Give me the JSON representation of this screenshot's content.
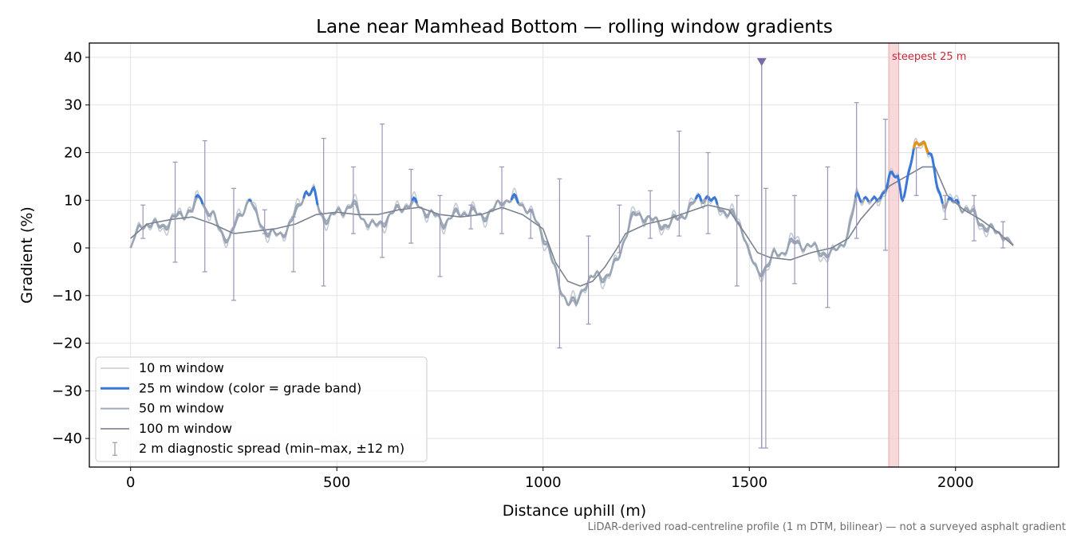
{
  "chart_data": {
    "type": "line",
    "title": "Lane near Mamhead Bottom — rolling window gradients",
    "xlabel": "Distance uphill (m)",
    "ylabel": "Gradient (%)",
    "xlim": [
      -100,
      2250
    ],
    "ylim": [
      -46,
      43
    ],
    "xticks": [
      0,
      500,
      1000,
      1500,
      2000
    ],
    "xtick_labels": [
      "0",
      "500",
      "1000",
      "1500",
      "2000"
    ],
    "yticks": [
      -40,
      -30,
      -20,
      -10,
      0,
      10,
      20,
      30,
      40
    ],
    "ytick_labels": [
      "−40",
      "−30",
      "−20",
      "−10",
      "0",
      "10",
      "20",
      "30",
      "40"
    ],
    "grid": true,
    "legend_position": "lower-left",
    "caption": "LiDAR-derived road-centreline profile (1 m DTM, bilinear) — not a surveyed asphalt gradient",
    "colors": {
      "w10": "#c5ccd6",
      "w25": "#9aa5b4",
      "w50": "#a2aab8",
      "w100": "#7b8291",
      "band_blue": "#3a78d8",
      "band_orange": "#e8920c",
      "band_red": "#d62728",
      "errorbar": "#9a96b8",
      "marker": "#7b6aa8",
      "highlight": "#f4c7cc",
      "highlight_text": "#c8283a"
    },
    "profile_knots": [
      [
        0,
        0
      ],
      [
        20,
        4
      ],
      [
        40,
        5.2
      ],
      [
        70,
        5.5
      ],
      [
        100,
        6
      ],
      [
        130,
        6.5
      ],
      [
        150,
        7
      ],
      [
        170,
        11
      ],
      [
        180,
        9
      ],
      [
        200,
        7.5
      ],
      [
        220,
        4
      ],
      [
        240,
        2
      ],
      [
        260,
        5
      ],
      [
        275,
        7.5
      ],
      [
        290,
        10
      ],
      [
        300,
        7
      ],
      [
        320,
        5
      ],
      [
        340,
        4
      ],
      [
        360,
        3
      ],
      [
        380,
        4
      ],
      [
        400,
        6
      ],
      [
        425,
        11.5
      ],
      [
        445,
        11.5
      ],
      [
        460,
        8
      ],
      [
        480,
        7
      ],
      [
        500,
        7.5
      ],
      [
        540,
        8
      ],
      [
        560,
        6
      ],
      [
        590,
        5
      ],
      [
        620,
        7
      ],
      [
        660,
        8
      ],
      [
        700,
        8.5
      ],
      [
        740,
        7.5
      ],
      [
        760,
        6
      ],
      [
        800,
        6.5
      ],
      [
        840,
        7
      ],
      [
        870,
        8
      ],
      [
        900,
        10.5
      ],
      [
        930,
        9
      ],
      [
        960,
        8
      ],
      [
        990,
        5
      ],
      [
        1010,
        2
      ],
      [
        1040,
        -8
      ],
      [
        1060,
        -12
      ],
      [
        1080,
        -13
      ],
      [
        1100,
        -8
      ],
      [
        1130,
        -5
      ],
      [
        1160,
        -5
      ],
      [
        1180,
        -3
      ],
      [
        1200,
        2
      ],
      [
        1220,
        6
      ],
      [
        1250,
        7
      ],
      [
        1280,
        6
      ],
      [
        1310,
        5
      ],
      [
        1340,
        6
      ],
      [
        1360,
        8
      ],
      [
        1380,
        11
      ],
      [
        1400,
        11.5
      ],
      [
        1430,
        9
      ],
      [
        1460,
        6
      ],
      [
        1490,
        2
      ],
      [
        1500,
        -2
      ],
      [
        1520,
        -5
      ],
      [
        1540,
        -3
      ],
      [
        1560,
        -1
      ],
      [
        1580,
        -1
      ],
      [
        1600,
        0
      ],
      [
        1620,
        0
      ],
      [
        1650,
        0.5
      ],
      [
        1680,
        0
      ],
      [
        1700,
        -1
      ],
      [
        1720,
        0
      ],
      [
        1740,
        2
      ],
      [
        1760,
        10
      ],
      [
        1780,
        11
      ],
      [
        1800,
        10
      ],
      [
        1820,
        12
      ],
      [
        1840,
        15
      ],
      [
        1860,
        14
      ],
      [
        1870,
        10
      ],
      [
        1880,
        12
      ],
      [
        1890,
        16
      ],
      [
        1900,
        20
      ],
      [
        1915,
        23
      ],
      [
        1925,
        23
      ],
      [
        1940,
        20
      ],
      [
        1955,
        14
      ],
      [
        1970,
        10
      ],
      [
        2000,
        8.5
      ],
      [
        2040,
        7
      ],
      [
        2080,
        5
      ],
      [
        2110,
        3
      ],
      [
        2140,
        0.5
      ]
    ],
    "window100_knots": [
      [
        0,
        2
      ],
      [
        40,
        5
      ],
      [
        100,
        6
      ],
      [
        150,
        6.5
      ],
      [
        200,
        5
      ],
      [
        250,
        3
      ],
      [
        300,
        3.5
      ],
      [
        350,
        4
      ],
      [
        400,
        5
      ],
      [
        450,
        7
      ],
      [
        500,
        7.5
      ],
      [
        550,
        7
      ],
      [
        600,
        7
      ],
      [
        650,
        8
      ],
      [
        700,
        8.5
      ],
      [
        750,
        7
      ],
      [
        800,
        6.5
      ],
      [
        850,
        7
      ],
      [
        900,
        8.5
      ],
      [
        950,
        7
      ],
      [
        1000,
        4
      ],
      [
        1030,
        -3
      ],
      [
        1060,
        -7
      ],
      [
        1090,
        -8
      ],
      [
        1120,
        -7
      ],
      [
        1150,
        -4
      ],
      [
        1180,
        0
      ],
      [
        1200,
        3
      ],
      [
        1250,
        5
      ],
      [
        1300,
        6
      ],
      [
        1350,
        7.5
      ],
      [
        1400,
        9
      ],
      [
        1450,
        8
      ],
      [
        1490,
        3
      ],
      [
        1520,
        -1
      ],
      [
        1550,
        -2
      ],
      [
        1600,
        -2.5
      ],
      [
        1650,
        -1
      ],
      [
        1700,
        0
      ],
      [
        1740,
        2
      ],
      [
        1770,
        6
      ],
      [
        1800,
        9
      ],
      [
        1840,
        13
      ],
      [
        1880,
        15
      ],
      [
        1920,
        17
      ],
      [
        1950,
        17
      ],
      [
        1980,
        11
      ],
      [
        2020,
        8
      ],
      [
        2060,
        6
      ],
      [
        2100,
        3.5
      ],
      [
        2140,
        0.5
      ]
    ],
    "errorbars": [
      {
        "x": 30,
        "min": 2,
        "max": 9
      },
      {
        "x": 108,
        "min": -3,
        "max": 18
      },
      {
        "x": 180,
        "min": -5,
        "max": 22.5
      },
      {
        "x": 250,
        "min": -11,
        "max": 12.5
      },
      {
        "x": 325,
        "min": 3,
        "max": 8
      },
      {
        "x": 395,
        "min": -5,
        "max": 6.5
      },
      {
        "x": 468,
        "min": -8,
        "max": 23
      },
      {
        "x": 540,
        "min": 3,
        "max": 17
      },
      {
        "x": 610,
        "min": -2,
        "max": 26
      },
      {
        "x": 680,
        "min": 1,
        "max": 16.5
      },
      {
        "x": 750,
        "min": -6,
        "max": 11
      },
      {
        "x": 825,
        "min": 4,
        "max": 9
      },
      {
        "x": 900,
        "min": 3,
        "max": 17
      },
      {
        "x": 970,
        "min": 2,
        "max": 8
      },
      {
        "x": 1040,
        "min": -21,
        "max": 14.5
      },
      {
        "x": 1110,
        "min": -16,
        "max": 2.5
      },
      {
        "x": 1185,
        "min": -1,
        "max": 9
      },
      {
        "x": 1260,
        "min": 2,
        "max": 12
      },
      {
        "x": 1330,
        "min": 2.5,
        "max": 24.5
      },
      {
        "x": 1400,
        "min": 3,
        "max": 20
      },
      {
        "x": 1470,
        "min": -8,
        "max": 11
      },
      {
        "x": 1540,
        "min": -42,
        "max": 12.5
      },
      {
        "x": 1610,
        "min": -7.5,
        "max": 11
      },
      {
        "x": 1690,
        "min": -12.5,
        "max": 17
      },
      {
        "x": 1760,
        "min": 2,
        "max": 30.5
      },
      {
        "x": 1830,
        "min": -0.5,
        "max": 27
      },
      {
        "x": 1905,
        "min": 11,
        "max": 21
      },
      {
        "x": 1975,
        "min": 6,
        "max": 11
      },
      {
        "x": 2045,
        "min": 1.5,
        "max": 11
      },
      {
        "x": 2115,
        "min": 0,
        "max": 5.5
      }
    ],
    "spike": {
      "x": 1530,
      "min": -42,
      "max": 39
    },
    "steepest_band": {
      "x_start": 1838,
      "x_end": 1862,
      "label": "steepest 25 m"
    },
    "legend": [
      {
        "key": "w10",
        "label": "10 m window"
      },
      {
        "key": "w25",
        "label": "25 m window (color = grade band)"
      },
      {
        "key": "w50",
        "label": "50 m window"
      },
      {
        "key": "w100",
        "label": "100 m window"
      },
      {
        "key": "err",
        "label": "2 m diagnostic spread (min–max, ±12 m)"
      }
    ]
  }
}
